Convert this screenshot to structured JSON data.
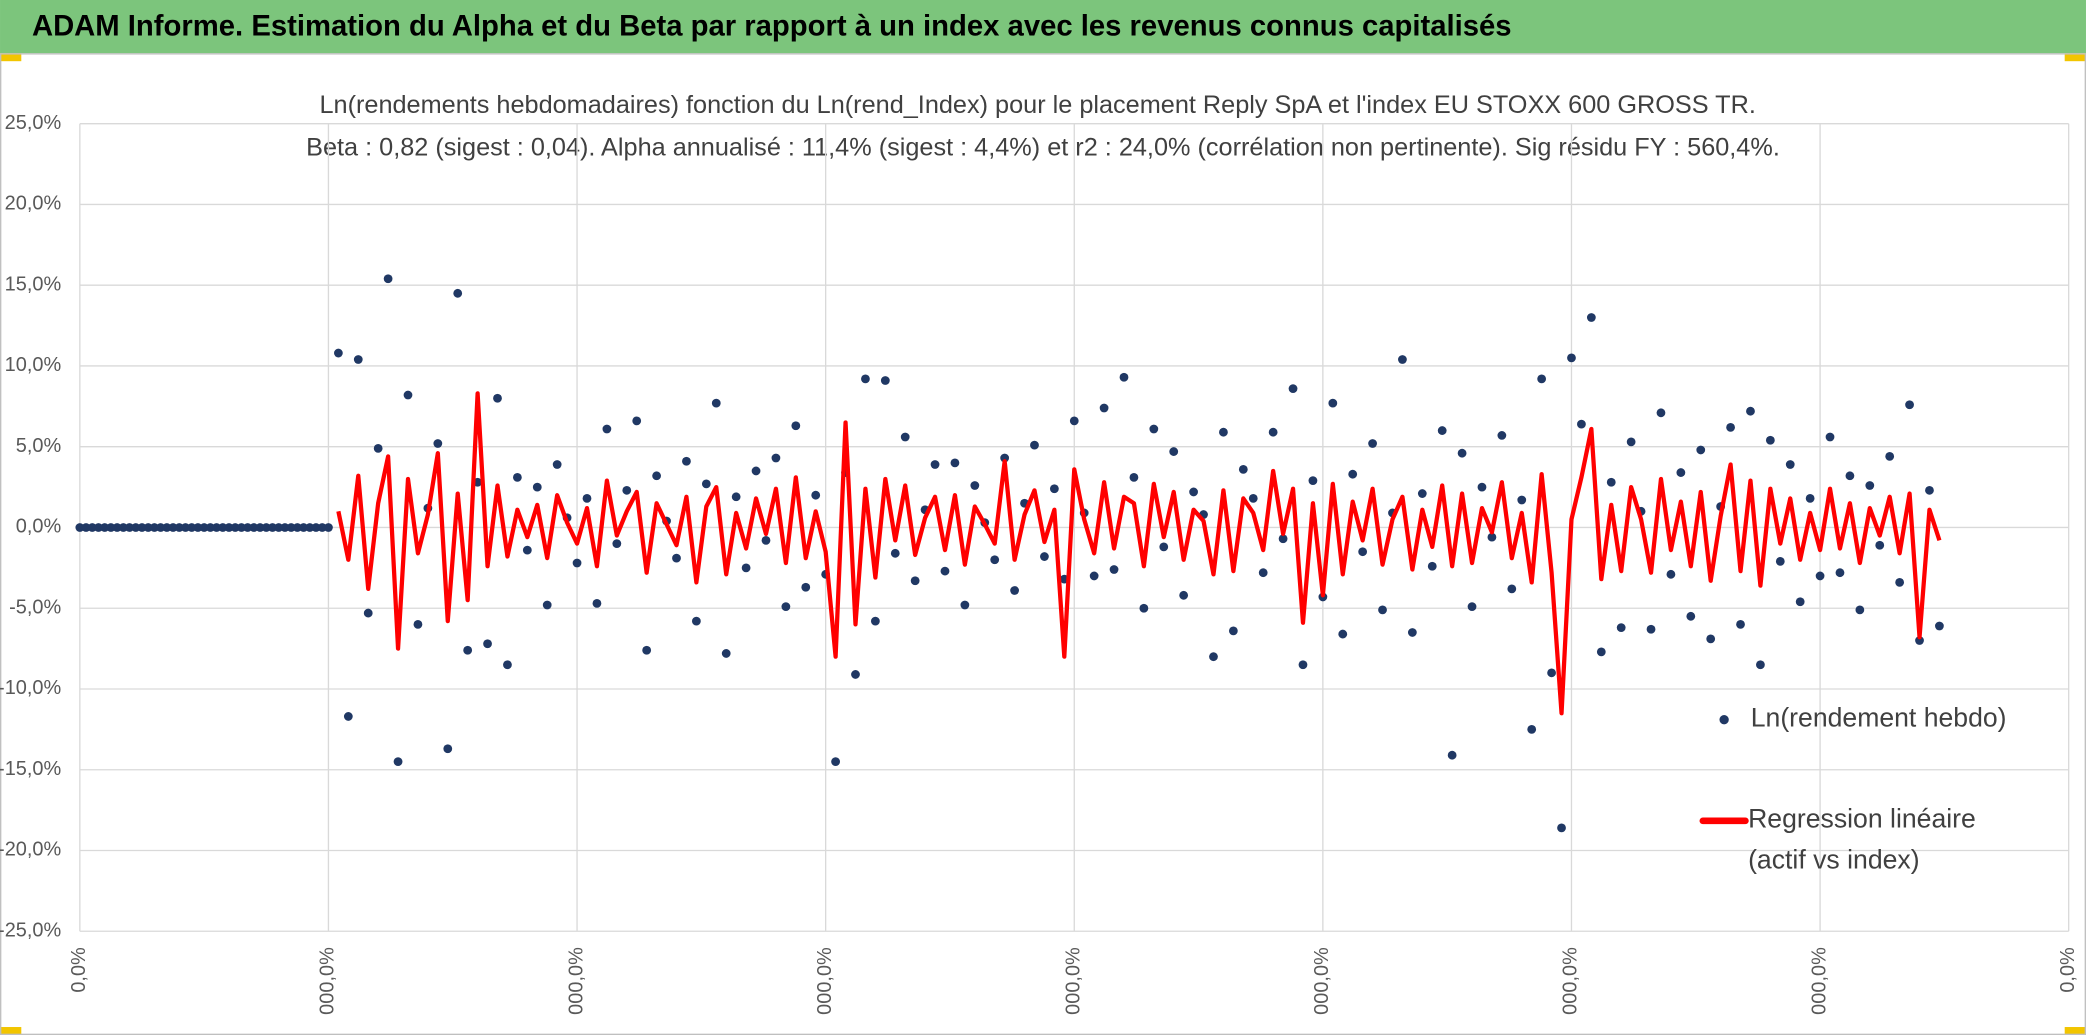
{
  "header": {
    "title": "ADAM Informe. Estimation du Alpha et du Beta par rapport à un index avec les revenus connus capitalisés"
  },
  "chart_data": {
    "type": "scatter",
    "title": "Ln(rendements hebdomadaires) fonction du Ln(rend_Index) pour le placement Reply SpA et l'index EU STOXX 600 GROSS TR.",
    "subtitle": "Beta : 0,82 (sigest : 0,04). Alpha annualisé : 11,4% (sigest : 4,4%) et r2 : 24,0% (corrélation non pertinente). Sig résidu FY : 560,4%.",
    "grid": true,
    "legend": "right",
    "xlim": [
      0,
      8
    ],
    "xticks": [
      {
        "value": 0,
        "label": "0,0%"
      },
      {
        "value": 1,
        "label": "000,0%"
      },
      {
        "value": 2,
        "label": "000,0%"
      },
      {
        "value": 3,
        "label": "000,0%"
      },
      {
        "value": 4,
        "label": "000,0%"
      },
      {
        "value": 5,
        "label": "000,0%"
      },
      {
        "value": 6,
        "label": "000,0%"
      },
      {
        "value": 7,
        "label": "000,0%"
      },
      {
        "value": 8,
        "label": "0,0%"
      }
    ],
    "ylim": [
      -25,
      25
    ],
    "yticks": [
      {
        "value": -25,
        "label": "-25,0%"
      },
      {
        "value": -20,
        "label": "-20,0%"
      },
      {
        "value": -15,
        "label": "-15,0%"
      },
      {
        "value": -10,
        "label": "-10,0%"
      },
      {
        "value": -5,
        "label": "-5,0%"
      },
      {
        "value": 0,
        "label": "0,0%"
      },
      {
        "value": 5,
        "label": "5,0%"
      },
      {
        "value": 10,
        "label": "10,0%"
      },
      {
        "value": 15,
        "label": "15,0%"
      },
      {
        "value": 20,
        "label": "20,0%"
      },
      {
        "value": 25,
        "label": "25,0%"
      }
    ],
    "x": [
      0,
      0.025,
      0.05,
      0.075,
      0.1,
      0.125,
      0.15,
      0.175,
      0.2,
      0.225,
      0.25,
      0.275,
      0.3,
      0.325,
      0.35,
      0.375,
      0.4,
      0.425,
      0.45,
      0.475,
      0.5,
      0.525,
      0.55,
      0.575,
      0.6,
      0.625,
      0.65,
      0.675,
      0.7,
      0.725,
      0.75,
      0.775,
      0.8,
      0.825,
      0.85,
      0.875,
      0.9,
      0.925,
      0.95,
      0.975,
      1,
      1.04,
      1.08,
      1.12,
      1.16,
      1.2,
      1.24,
      1.28,
      1.32,
      1.36,
      1.4,
      1.44,
      1.48,
      1.52,
      1.56,
      1.6,
      1.64,
      1.68,
      1.72,
      1.76,
      1.8,
      1.84,
      1.88,
      1.92,
      1.96,
      2,
      2.04,
      2.08,
      2.12,
      2.16,
      2.2,
      2.24,
      2.28,
      2.32,
      2.36,
      2.4,
      2.44,
      2.48,
      2.52,
      2.56,
      2.6,
      2.64,
      2.68,
      2.72,
      2.76,
      2.8,
      2.84,
      2.88,
      2.92,
      2.96,
      3,
      3.04,
      3.08,
      3.12,
      3.16,
      3.2,
      3.24,
      3.28,
      3.32,
      3.36,
      3.4,
      3.44,
      3.48,
      3.52,
      3.56,
      3.6,
      3.64,
      3.68,
      3.72,
      3.76,
      3.8,
      3.84,
      3.88,
      3.92,
      3.96,
      4,
      4.04,
      4.08,
      4.12,
      4.16,
      4.2,
      4.24,
      4.28,
      4.32,
      4.36,
      4.4,
      4.44,
      4.48,
      4.52,
      4.56,
      4.6,
      4.64,
      4.68,
      4.72,
      4.76,
      4.8,
      4.84,
      4.88,
      4.92,
      4.96,
      5,
      5.04,
      5.08,
      5.12,
      5.16,
      5.2,
      5.24,
      5.28,
      5.32,
      5.36,
      5.4,
      5.44,
      5.48,
      5.52,
      5.56,
      5.6,
      5.64,
      5.68,
      5.72,
      5.76,
      5.8,
      5.84,
      5.88,
      5.92,
      5.96,
      6,
      6.04,
      6.08,
      6.12,
      6.16,
      6.2,
      6.24,
      6.28,
      6.32,
      6.36,
      6.4,
      6.44,
      6.48,
      6.52,
      6.56,
      6.6,
      6.64,
      6.68,
      6.72,
      6.76,
      6.8,
      6.84,
      6.88,
      6.92,
      6.96,
      7,
      7.04,
      7.08,
      7.12,
      7.16,
      7.2,
      7.24,
      7.28,
      7.32,
      7.36,
      7.4,
      7.44,
      7.48
    ],
    "series": [
      {
        "name": "Ln(rendement hebdo)",
        "type": "scatter",
        "color": "#203864",
        "values": [
          0,
          0,
          0,
          0,
          0,
          0,
          0,
          0,
          0,
          0,
          0,
          0,
          0,
          0,
          0,
          0,
          0,
          0,
          0,
          0,
          0,
          0,
          0,
          0,
          0,
          0,
          0,
          0,
          0,
          0,
          0,
          0,
          0,
          0,
          0,
          0,
          0,
          0,
          0,
          0,
          0,
          10.8,
          -11.7,
          10.4,
          -5.3,
          4.9,
          15.4,
          -14.5,
          8.2,
          -6.0,
          1.2,
          5.2,
          -13.7,
          14.5,
          -7.6,
          2.8,
          -7.2,
          8.0,
          -8.5,
          3.1,
          -1.4,
          2.5,
          -4.8,
          3.9,
          0.6,
          -2.2,
          1.8,
          -4.7,
          6.1,
          -1.0,
          2.3,
          6.6,
          -7.6,
          3.2,
          0.4,
          -1.9,
          4.1,
          -5.8,
          2.7,
          7.7,
          -7.8,
          1.9,
          -2.5,
          3.5,
          -0.8,
          4.3,
          -4.9,
          6.3,
          -3.7,
          2.0,
          -2.9,
          -14.5,
          3.4,
          -9.1,
          9.2,
          -5.8,
          9.1,
          -1.6,
          5.6,
          -3.3,
          1.1,
          3.9,
          -2.7,
          4.0,
          -4.8,
          2.6,
          0.3,
          -2.0,
          4.3,
          -3.9,
          1.5,
          5.1,
          -1.8,
          2.4,
          -3.2,
          6.6,
          0.9,
          -3.0,
          7.4,
          -2.6,
          9.3,
          3.1,
          -5.0,
          6.1,
          -1.2,
          4.7,
          -4.2,
          2.2,
          0.8,
          -8.0,
          5.9,
          -6.4,
          3.6,
          1.8,
          -2.8,
          5.9,
          -0.7,
          8.6,
          -8.5,
          2.9,
          -4.3,
          7.7,
          -6.6,
          3.3,
          -1.5,
          5.2,
          -5.1,
          0.9,
          10.4,
          -6.5,
          2.1,
          -2.4,
          6.0,
          -14.1,
          4.6,
          -4.9,
          2.5,
          -0.6,
          5.7,
          -3.8,
          1.7,
          -12.5,
          9.2,
          -9.0,
          -18.6,
          10.5,
          6.4,
          13.0,
          -7.7,
          2.8,
          -6.2,
          5.3,
          1.0,
          -6.3,
          7.1,
          -2.9,
          3.4,
          -5.5,
          4.8,
          -6.9,
          1.3,
          6.2,
          -6.0,
          7.2,
          -8.5,
          5.4,
          -2.1,
          3.9,
          -4.6,
          1.8,
          -3.0,
          5.6,
          -2.8,
          3.2,
          -5.1,
          2.6,
          -1.1,
          4.4,
          -3.4,
          7.6,
          -7.0,
          2.3,
          -6.1
        ]
      },
      {
        "name": "Regression linéaire (actif vs index)",
        "type": "line",
        "color": "#ff0000",
        "values": [
          null,
          null,
          null,
          null,
          null,
          null,
          null,
          null,
          null,
          null,
          null,
          null,
          null,
          null,
          null,
          null,
          null,
          null,
          null,
          null,
          null,
          null,
          null,
          null,
          null,
          null,
          null,
          null,
          null,
          null,
          null,
          null,
          null,
          null,
          null,
          null,
          null,
          null,
          null,
          null,
          null,
          1.0,
          -2.0,
          3.2,
          -3.8,
          1.5,
          4.4,
          -7.5,
          3.0,
          -1.6,
          0.8,
          4.6,
          -5.8,
          2.1,
          -4.5,
          8.3,
          -2.4,
          2.6,
          -1.8,
          1.1,
          -0.6,
          1.4,
          -1.9,
          2.0,
          0.3,
          -1.0,
          1.2,
          -2.4,
          2.9,
          -0.5,
          1.0,
          2.2,
          -2.8,
          1.5,
          0.2,
          -1.1,
          1.9,
          -3.4,
          1.3,
          2.5,
          -2.9,
          0.9,
          -1.3,
          1.8,
          -0.4,
          2.4,
          -2.2,
          3.1,
          -1.9,
          1.0,
          -1.5,
          -8.0,
          6.5,
          -6.0,
          2.4,
          -3.1,
          3.0,
          -0.8,
          2.6,
          -1.7,
          0.6,
          1.9,
          -1.4,
          2.0,
          -2.3,
          1.3,
          0.2,
          -1.0,
          4.1,
          -2.0,
          0.8,
          2.3,
          -0.9,
          1.1,
          -8.0,
          3.6,
          0.5,
          -1.6,
          2.8,
          -1.3,
          1.9,
          1.5,
          -2.4,
          2.7,
          -0.6,
          2.2,
          -2.0,
          1.1,
          0.4,
          -2.9,
          2.3,
          -2.7,
          1.8,
          0.9,
          -1.4,
          3.5,
          -0.4,
          2.4,
          -5.9,
          1.5,
          -4.2,
          2.7,
          -2.9,
          1.6,
          -0.8,
          2.4,
          -2.3,
          0.5,
          1.9,
          -2.6,
          1.1,
          -1.2,
          2.6,
          -2.4,
          2.1,
          -2.2,
          1.2,
          -0.3,
          2.8,
          -1.9,
          0.9,
          -3.4,
          3.3,
          -2.8,
          -11.5,
          0.5,
          3.1,
          6.1,
          -3.2,
          1.4,
          -2.7,
          2.5,
          0.5,
          -2.8,
          3.0,
          -1.4,
          1.6,
          -2.4,
          2.2,
          -3.3,
          0.7,
          3.9,
          -2.7,
          2.9,
          -3.6,
          2.4,
          -1.0,
          1.8,
          -2.0,
          0.9,
          -1.4,
          2.4,
          -1.3,
          1.5,
          -2.2,
          1.2,
          -0.5,
          1.9,
          -1.6,
          2.1,
          -6.8,
          1.1,
          -0.8
        ]
      }
    ]
  }
}
